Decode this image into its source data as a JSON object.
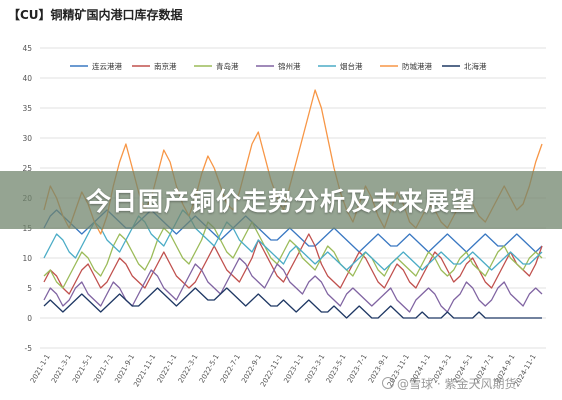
{
  "page_title": "【CU】铜精矿国内港口库存数据",
  "banner_text": "今日国产铜价走势分析及未来展望",
  "watermark_text": "@雪球 · 紫金天风期货",
  "chart_data": {
    "type": "line",
    "title": "",
    "xlabel": "",
    "ylabel": "",
    "ylim": [
      -5,
      45
    ],
    "yticks": [
      -5,
      0,
      5,
      10,
      15,
      20,
      25,
      30,
      35,
      40,
      45
    ],
    "grid": true,
    "legend_position": "top",
    "x_tick_labels": [
      "2021-1-1",
      "2021-3-1",
      "2021-5-1",
      "2021-7-1",
      "2021-9-1",
      "2021-11-1",
      "2022-1-1",
      "2022-3-1",
      "2022-5-1",
      "2022-7-1",
      "2022-9-1",
      "2022-11-1",
      "2023-1-1",
      "2023-3-1",
      "2023-5-1",
      "2023-7-1",
      "2023-9-1",
      "2023-11-1",
      "2024-1-1",
      "2024-3-1",
      "2024-5-1",
      "2024-7-1",
      "2024-9-1",
      "2024-11-1"
    ],
    "series": [
      {
        "name": "连云港港",
        "color": "#3a78c2",
        "values": [
          15,
          17,
          18,
          17,
          16,
          15,
          14,
          15,
          16,
          17,
          18,
          17,
          16,
          15,
          15,
          16,
          17,
          18,
          17,
          16,
          15,
          14,
          15,
          16,
          17,
          16,
          15,
          14,
          13,
          14,
          15,
          16,
          17,
          16,
          15,
          14,
          13,
          13,
          14,
          15,
          14,
          13,
          12,
          12,
          13,
          14,
          15,
          14,
          13,
          12,
          11,
          12,
          13,
          14,
          13,
          12,
          12,
          13,
          14,
          13,
          12,
          11,
          12,
          13,
          14,
          13,
          12,
          11,
          12,
          13,
          14,
          13,
          12,
          12,
          13,
          14,
          13,
          12,
          11,
          12
        ]
      },
      {
        "name": "南京港",
        "color": "#c0504d",
        "values": [
          6,
          8,
          7,
          5,
          4,
          6,
          8,
          9,
          7,
          5,
          6,
          8,
          10,
          9,
          7,
          6,
          5,
          7,
          9,
          11,
          9,
          7,
          6,
          5,
          6,
          8,
          10,
          12,
          10,
          8,
          7,
          6,
          8,
          10,
          13,
          11,
          9,
          7,
          6,
          8,
          10,
          12,
          14,
          12,
          9,
          7,
          6,
          5,
          7,
          9,
          11,
          10,
          8,
          6,
          5,
          7,
          9,
          8,
          6,
          5,
          7,
          9,
          11,
          10,
          8,
          6,
          7,
          9,
          10,
          8,
          6,
          5,
          7,
          9,
          11,
          9,
          8,
          7,
          9,
          12
        ]
      },
      {
        "name": "青岛港",
        "color": "#9bbb59",
        "values": [
          7,
          8,
          6,
          5,
          7,
          9,
          11,
          10,
          8,
          7,
          9,
          12,
          14,
          13,
          11,
          9,
          8,
          10,
          13,
          15,
          14,
          12,
          10,
          9,
          11,
          13,
          16,
          15,
          13,
          11,
          10,
          12,
          14,
          16,
          14,
          12,
          10,
          9,
          11,
          13,
          12,
          10,
          9,
          8,
          10,
          12,
          11,
          9,
          8,
          7,
          9,
          11,
          10,
          8,
          7,
          9,
          10,
          9,
          8,
          7,
          9,
          11,
          10,
          8,
          7,
          8,
          10,
          11,
          9,
          8,
          7,
          9,
          11,
          12,
          10,
          9,
          8,
          10,
          11,
          10
        ]
      },
      {
        "name": "锦州港",
        "color": "#8064a2",
        "values": [
          3,
          5,
          4,
          2,
          3,
          5,
          6,
          4,
          3,
          2,
          4,
          6,
          5,
          3,
          2,
          4,
          6,
          8,
          7,
          5,
          4,
          3,
          5,
          7,
          9,
          8,
          6,
          5,
          4,
          6,
          8,
          10,
          9,
          7,
          6,
          5,
          7,
          9,
          8,
          6,
          5,
          4,
          6,
          7,
          6,
          4,
          3,
          2,
          4,
          5,
          4,
          3,
          2,
          3,
          4,
          5,
          3,
          2,
          1,
          3,
          4,
          5,
          4,
          2,
          1,
          3,
          4,
          6,
          5,
          3,
          2,
          3,
          5,
          6,
          4,
          3,
          2,
          4,
          5,
          4
        ]
      },
      {
        "name": "烟台港",
        "color": "#4bacc6",
        "values": [
          10,
          12,
          14,
          13,
          11,
          10,
          12,
          14,
          16,
          15,
          13,
          12,
          11,
          13,
          15,
          17,
          16,
          14,
          13,
          12,
          14,
          16,
          18,
          17,
          15,
          14,
          13,
          12,
          14,
          16,
          15,
          13,
          12,
          11,
          13,
          12,
          11,
          10,
          9,
          11,
          12,
          11,
          10,
          9,
          10,
          11,
          10,
          9,
          8,
          9,
          10,
          11,
          10,
          9,
          8,
          9,
          10,
          11,
          10,
          9,
          8,
          9,
          10,
          11,
          10,
          9,
          9,
          10,
          11,
          10,
          9,
          8,
          9,
          10,
          11,
          10,
          9,
          9,
          10,
          11
        ]
      },
      {
        "name": "防城港港",
        "color": "#f79646",
        "values": [
          18,
          22,
          20,
          17,
          15,
          18,
          21,
          19,
          16,
          14,
          17,
          22,
          26,
          29,
          25,
          21,
          18,
          20,
          24,
          28,
          26,
          22,
          19,
          17,
          20,
          24,
          27,
          25,
          22,
          19,
          18,
          21,
          25,
          29,
          31,
          27,
          23,
          20,
          18,
          22,
          26,
          30,
          34,
          38,
          35,
          30,
          25,
          21,
          18,
          16,
          19,
          22,
          20,
          17,
          15,
          18,
          21,
          19,
          16,
          15,
          17,
          19,
          18,
          16,
          15,
          17,
          19,
          21,
          19,
          17,
          16,
          18,
          20,
          22,
          20,
          18,
          19,
          22,
          26,
          29
        ]
      },
      {
        "name": "北海港",
        "color": "#1f3864",
        "values": [
          2,
          3,
          2,
          1,
          2,
          3,
          4,
          3,
          2,
          1,
          2,
          3,
          4,
          3,
          2,
          2,
          3,
          4,
          5,
          4,
          3,
          2,
          3,
          4,
          5,
          4,
          3,
          3,
          4,
          5,
          4,
          3,
          2,
          3,
          4,
          3,
          2,
          2,
          3,
          2,
          1,
          2,
          3,
          2,
          1,
          1,
          2,
          1,
          0,
          1,
          2,
          1,
          0,
          0,
          1,
          2,
          1,
          0,
          0,
          0,
          1,
          0,
          0,
          0,
          1,
          0,
          0,
          0,
          0,
          1,
          0,
          0,
          0,
          0,
          0,
          0,
          0,
          0,
          0,
          0
        ]
      }
    ]
  }
}
